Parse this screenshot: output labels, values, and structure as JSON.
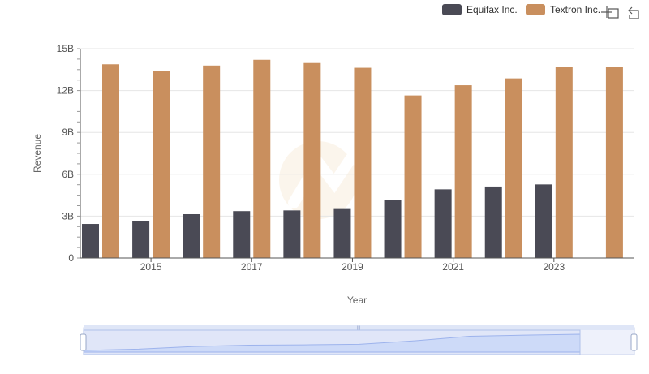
{
  "legend": {
    "items": [
      {
        "name": "Equifax Inc.",
        "color": "#4a4a55"
      },
      {
        "name": "Textron Inc.",
        "color": "#c98f5e"
      }
    ]
  },
  "toolbar": {
    "icons": [
      "zoom-select-icon",
      "reset-zoom-icon"
    ]
  },
  "chart_data": {
    "type": "bar",
    "x": [
      2014,
      2015,
      2016,
      2017,
      2018,
      2019,
      2020,
      2021,
      2022,
      2023,
      2024
    ],
    "series": [
      {
        "name": "Equifax Inc.",
        "color": "#4a4a55",
        "values": [
          2.44,
          2.66,
          3.14,
          3.36,
          3.41,
          3.51,
          4.13,
          4.92,
          5.12,
          5.27,
          null
        ]
      },
      {
        "name": "Textron Inc.",
        "color": "#c98f5e",
        "values": [
          13.88,
          13.42,
          13.79,
          14.2,
          13.97,
          13.63,
          11.65,
          12.38,
          12.87,
          13.68,
          13.7
        ]
      }
    ],
    "xlabel": "Year",
    "ylabel": "Revenue",
    "ylim": [
      0,
      15
    ],
    "yticks": [
      0,
      3,
      6,
      9,
      12,
      15
    ],
    "ytick_labels": [
      "0",
      "3B",
      "6B",
      "9B",
      "12B",
      "15B"
    ],
    "xtick_labels": [
      "2015",
      "2017",
      "2019",
      "2021",
      "2023"
    ],
    "grid": true,
    "legend_position": "top-right"
  }
}
